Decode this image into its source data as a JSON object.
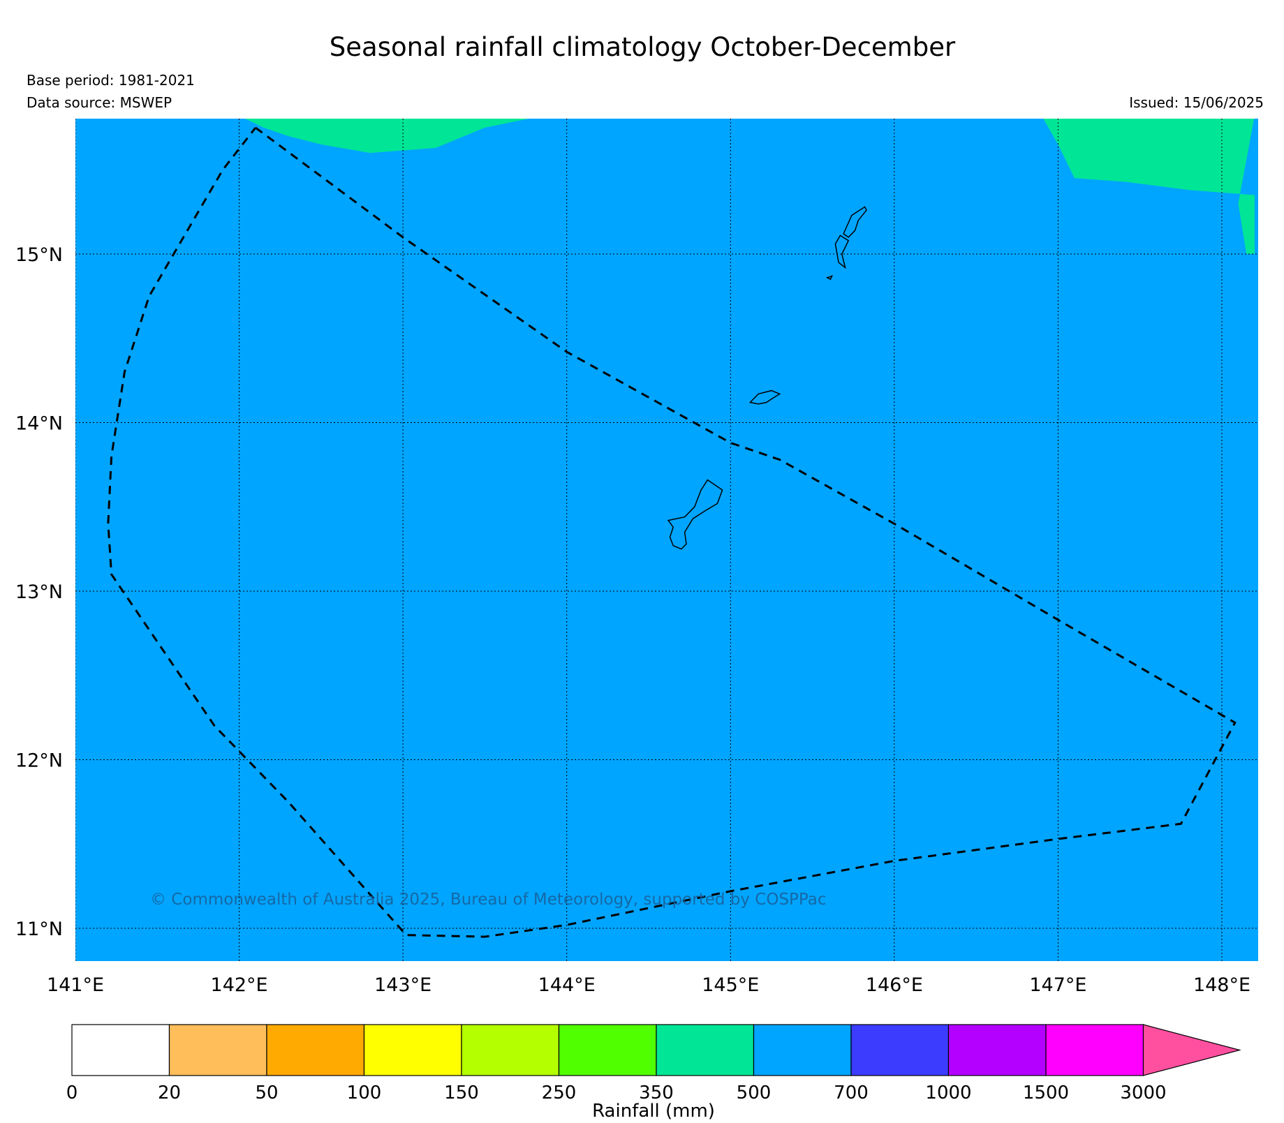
{
  "title": "Seasonal rainfall climatology October-December",
  "base_period": "Base period: 1981-2021",
  "data_source": "Data source: MSWEP",
  "issued": "Issued: 15/06/2025",
  "copyright": "© Commonwealth of Australia 2025, Bureau of Meteorology, supported by COSPPac",
  "map": {
    "lon_range": [
      141.0,
      148.2
    ],
    "lat_range": [
      10.8,
      15.82
    ],
    "lon_ticks": [
      141,
      142,
      143,
      144,
      145,
      146,
      147,
      148
    ],
    "lon_tick_labels": [
      "141°E",
      "142°E",
      "143°E",
      "144°E",
      "145°E",
      "146°E",
      "147°E",
      "148°E"
    ],
    "lat_ticks": [
      11,
      12,
      13,
      14,
      15
    ],
    "lat_tick_labels": [
      "11°N",
      "12°N",
      "13°N",
      "14°N",
      "15°N"
    ],
    "gridlines": "dotted",
    "background_class": "500-700 mm",
    "background_color": "#00a5ff",
    "wetter_areas_color": "#00e696",
    "wetter_areas_class": "350-500 mm",
    "eez_boundary_style": "dashed",
    "eez_boundary": [
      [
        142.1,
        15.75
      ],
      [
        143.0,
        15.1
      ],
      [
        144.0,
        14.42
      ],
      [
        144.5,
        14.15
      ],
      [
        145.0,
        13.88
      ],
      [
        145.3,
        13.78
      ],
      [
        146.0,
        13.4
      ],
      [
        147.0,
        12.83
      ],
      [
        148.08,
        12.22
      ],
      [
        147.75,
        11.62
      ],
      [
        147.0,
        11.53
      ],
      [
        146.0,
        11.4
      ],
      [
        145.0,
        11.22
      ],
      [
        144.0,
        11.02
      ],
      [
        143.5,
        10.95
      ],
      [
        143.02,
        10.96
      ],
      [
        142.8,
        11.2
      ],
      [
        142.3,
        11.75
      ],
      [
        141.85,
        12.2
      ],
      [
        141.22,
        13.1
      ],
      [
        141.2,
        13.4
      ],
      [
        141.22,
        13.8
      ],
      [
        141.3,
        14.3
      ],
      [
        141.45,
        14.75
      ],
      [
        141.6,
        15.0
      ],
      [
        141.75,
        15.25
      ],
      [
        141.9,
        15.5
      ],
      [
        142.1,
        15.75
      ]
    ],
    "islands": [
      {
        "name": "Guam",
        "outline": [
          [
            144.62,
            13.42
          ],
          [
            144.72,
            13.44
          ],
          [
            144.78,
            13.5
          ],
          [
            144.82,
            13.6
          ],
          [
            144.86,
            13.66
          ],
          [
            144.95,
            13.6
          ],
          [
            144.92,
            13.52
          ],
          [
            144.85,
            13.48
          ],
          [
            144.77,
            13.43
          ],
          [
            144.72,
            13.35
          ],
          [
            144.73,
            13.28
          ],
          [
            144.7,
            13.25
          ],
          [
            144.65,
            13.27
          ],
          [
            144.63,
            13.32
          ],
          [
            144.65,
            13.38
          ],
          [
            144.62,
            13.42
          ]
        ]
      },
      {
        "name": "Rota",
        "outline": [
          [
            145.12,
            14.12
          ],
          [
            145.17,
            14.17
          ],
          [
            145.25,
            14.19
          ],
          [
            145.3,
            14.17
          ],
          [
            145.25,
            14.14
          ],
          [
            145.22,
            14.12
          ],
          [
            145.17,
            14.11
          ],
          [
            145.12,
            14.12
          ]
        ]
      },
      {
        "name": "Tinian",
        "outline": [
          [
            145.59,
            14.86
          ],
          [
            145.62,
            14.87
          ],
          [
            145.61,
            14.85
          ],
          [
            145.59,
            14.86
          ]
        ]
      },
      {
        "name": "Saipan",
        "outline": [
          [
            145.68,
            15.0
          ],
          [
            145.72,
            15.08
          ],
          [
            145.67,
            15.11
          ],
          [
            145.64,
            15.06
          ],
          [
            145.66,
            14.95
          ],
          [
            145.7,
            14.92
          ],
          [
            145.68,
            15.0
          ]
        ]
      },
      {
        "name": "Saipan north",
        "outline": [
          [
            145.69,
            15.12
          ],
          [
            145.74,
            15.23
          ],
          [
            145.82,
            15.28
          ],
          [
            145.83,
            15.26
          ],
          [
            145.78,
            15.2
          ],
          [
            145.76,
            15.14
          ],
          [
            145.72,
            15.1
          ],
          [
            145.69,
            15.12
          ]
        ]
      }
    ],
    "wet_regions": [
      [
        [
          142.0,
          15.82
        ],
        [
          142.15,
          15.75
        ],
        [
          142.3,
          15.7
        ],
        [
          142.5,
          15.65
        ],
        [
          142.8,
          15.6
        ],
        [
          143.2,
          15.63
        ],
        [
          143.5,
          15.75
        ],
        [
          143.9,
          15.83
        ],
        [
          142.0,
          15.83
        ]
      ],
      [
        [
          146.9,
          15.82
        ],
        [
          147.0,
          15.65
        ],
        [
          147.1,
          15.45
        ],
        [
          147.4,
          15.43
        ],
        [
          147.8,
          15.38
        ],
        [
          148.2,
          15.35
        ],
        [
          148.2,
          15.0
        ],
        [
          148.15,
          15.0
        ],
        [
          148.1,
          15.3
        ],
        [
          148.2,
          15.82
        ]
      ]
    ]
  },
  "colorbar": {
    "label": "Rainfall (mm)",
    "tick_labels": [
      "0",
      "20",
      "50",
      "100",
      "150",
      "250",
      "350",
      "500",
      "700",
      "1000",
      "1500",
      "3000"
    ],
    "colors": [
      "#ffffff",
      "#ffbe5a",
      "#ffaa00",
      "#ffff00",
      "#b4ff00",
      "#50ff00",
      "#00e696",
      "#00a5ff",
      "#3c3cff",
      "#b400ff",
      "#ff00ff"
    ],
    "extend_color": "#ff50a0"
  }
}
